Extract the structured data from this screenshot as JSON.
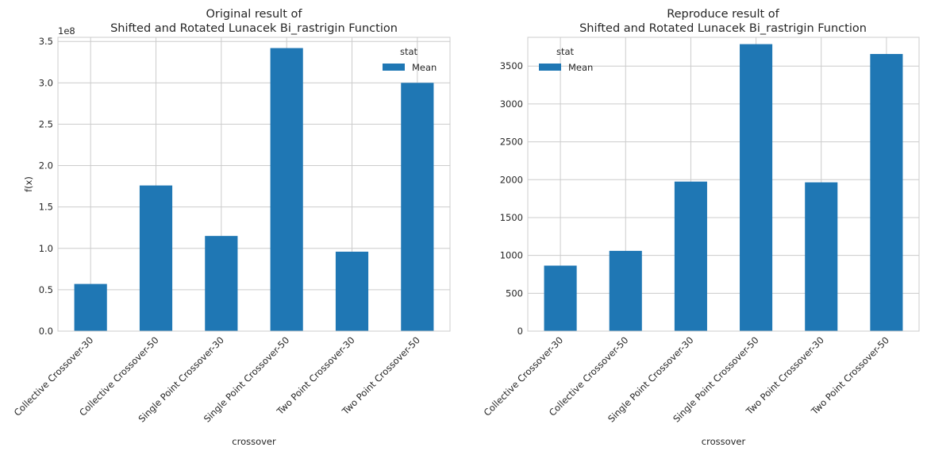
{
  "chart_data": [
    {
      "type": "bar",
      "title": "Original result of\nShifted and Rotated Lunacek Bi_rastrigin Function",
      "xlabel": "crossover",
      "ylabel": "f(x)",
      "offset_label": "1e8",
      "categories": [
        "Collective Crossover-30",
        "Collective Crossover-50",
        "Single Point Crossover-30",
        "Single Point Crossover-50",
        "Two Point Crossover-30",
        "Two Point Crossover-50"
      ],
      "series": [
        {
          "name": "Mean",
          "values": [
            57000000,
            176000000,
            115000000,
            342000000,
            96000000,
            300000000
          ]
        }
      ],
      "ylim": [
        0,
        355000000
      ],
      "ytick_values": [
        0,
        50000000,
        100000000,
        150000000,
        200000000,
        250000000,
        300000000,
        350000000
      ],
      "ytick_labels": [
        "0.0",
        "0.5",
        "1.0",
        "1.5",
        "2.0",
        "2.5",
        "3.0",
        "3.5"
      ],
      "legend_title": "stat",
      "legend_position": "top-right",
      "grid": true,
      "bar_color": "#1f77b4"
    },
    {
      "type": "bar",
      "title": "Reproduce result of\nShifted and Rotated Lunacek Bi_rastrigin Function",
      "xlabel": "crossover",
      "ylabel": "",
      "categories": [
        "Collective Crossover-30",
        "Collective Crossover-50",
        "Single Point Crossover-30",
        "Single Point Crossover-50",
        "Two Point Crossover-30",
        "Two Point Crossover-50"
      ],
      "series": [
        {
          "name": "Mean",
          "values": [
            865,
            1060,
            1975,
            3790,
            1965,
            3660
          ]
        }
      ],
      "ylim": [
        0,
        3880
      ],
      "ytick_values": [
        0,
        500,
        1000,
        1500,
        2000,
        2500,
        3000,
        3500
      ],
      "ytick_labels": [
        "0",
        "500",
        "1000",
        "1500",
        "2000",
        "2500",
        "3000",
        "3500"
      ],
      "legend_title": "stat",
      "legend_position": "top-left",
      "grid": true,
      "bar_color": "#1f77b4"
    }
  ]
}
